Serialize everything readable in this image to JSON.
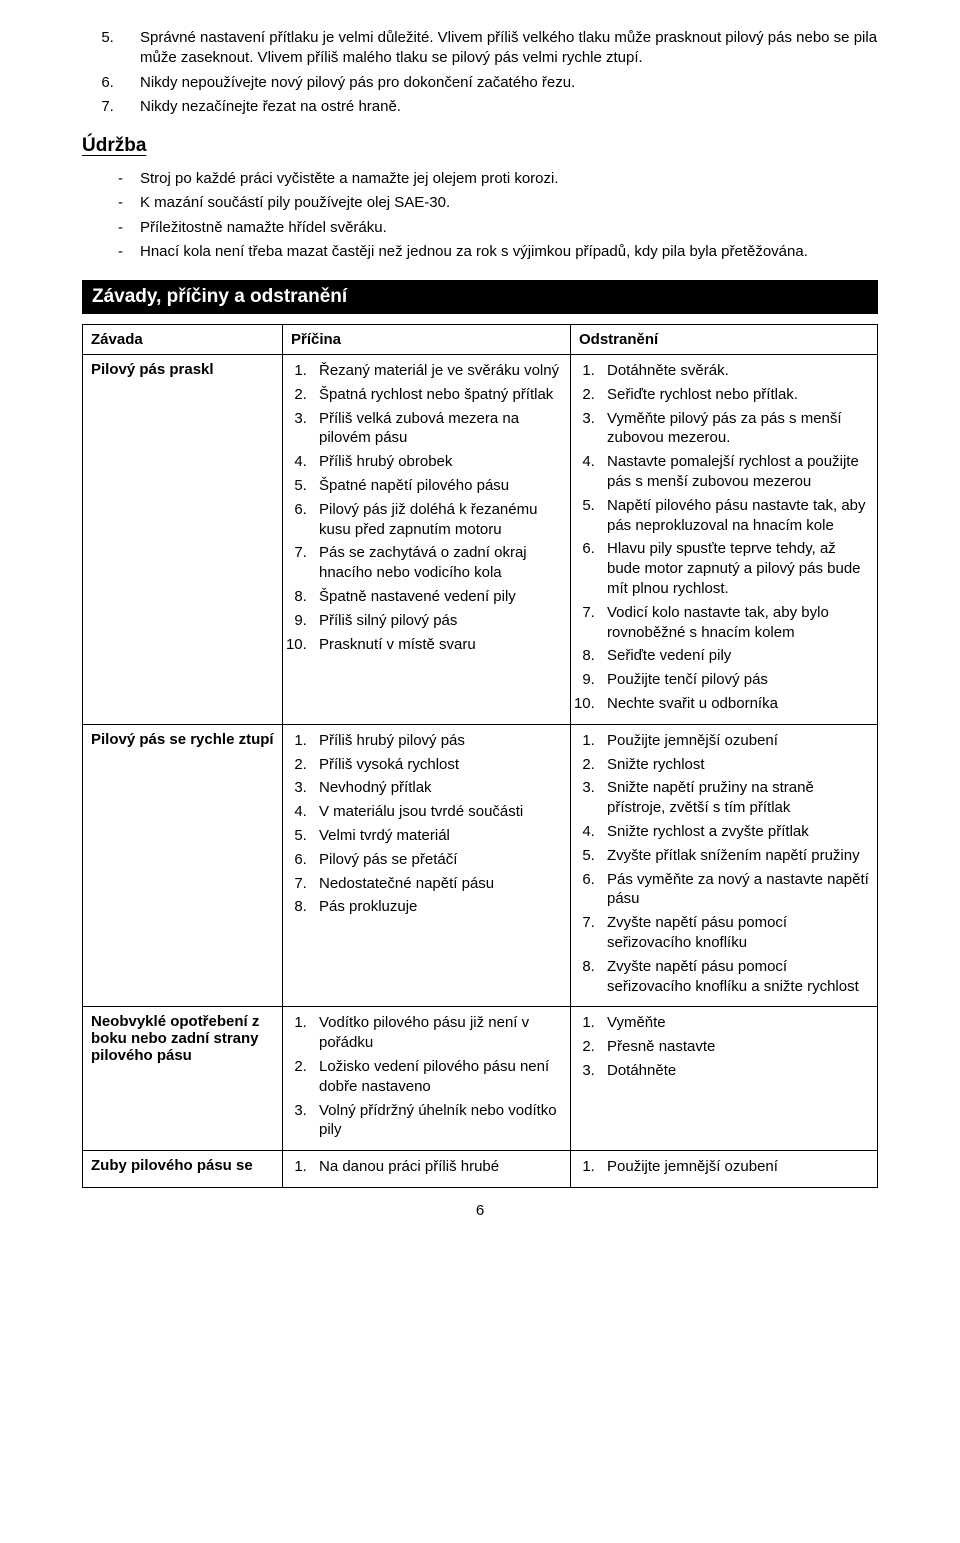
{
  "numbered": {
    "5": "Správné nastavení přítlaku je velmi důležité. Vlivem příliš velkého tlaku může prasknout pilový pás nebo se pila může zaseknout. Vlivem příliš malého tlaku se pilový pás velmi rychle ztupí.",
    "6": "Nikdy nepoužívejte nový pilový pás pro dokončení začatého řezu.",
    "7": "Nikdy nezačínejte řezat na ostré hraně."
  },
  "maintenance_title": "Údržba",
  "maintenance_items": {
    "0": "Stroj po každé práci vyčistěte a namažte jej olejem proti korozi.",
    "1": "K mazání součástí pily používejte olej SAE-30.",
    "2": "Příležitostně namažte hřídel svěráku.",
    "3": "Hnací kola není třeba mazat častěji než jednou za rok s výjimkou případů, kdy pila byla přetěžována."
  },
  "troubleshoot_title": "Závady, příčiny a odstranění",
  "table": {
    "headers": {
      "fault": "Závada",
      "cause": "Příčina",
      "fix": "Odstranění"
    },
    "rows": {
      "0": {
        "fault": "Pilový pás praskl",
        "cause": {
          "1": "Řezaný materiál je ve svěráku volný",
          "2": "Špatná rychlost nebo špatný přítlak",
          "3": "Příliš velká zubová mezera na pilovém pásu",
          "4": "Příliš hrubý obrobek",
          "5": "Špatné napětí pilového pásu",
          "6": "Pilový pás již doléhá k řezanému kusu před zapnutím motoru",
          "7": "Pás se zachytává o zadní okraj hnacího nebo vodicího kola",
          "8": "Špatně nastavené vedení pily",
          "9": "Příliš silný pilový pás",
          "10": "Prasknutí v místě svaru"
        },
        "fix": {
          "1": "Dotáhněte svěrák.",
          "2": "Seřiďte rychlost nebo přítlak.",
          "3": "Vyměňte pilový pás za pás s menší zubovou mezerou.",
          "4": "Nastavte pomalejší rychlost a použijte pás s menší zubovou mezerou",
          "5": "Napětí pilového pásu nastavte tak, aby pás neprokluzoval na hnacím kole",
          "6": "Hlavu pily spusťte teprve tehdy, až bude motor zapnutý a pilový pás bude mít plnou rychlost.",
          "7": "Vodicí kolo nastavte tak, aby bylo rovnoběžné s hnacím kolem",
          "8": "Seřiďte vedení pily",
          "9": "Použijte tenčí pilový pás",
          "10": "Nechte svařit u odborníka"
        }
      },
      "1": {
        "fault": "Pilový pás se rychle ztupí",
        "cause": {
          "1": "Příliš hrubý pilový pás",
          "2": "Příliš vysoká rychlost",
          "3": "Nevhodný přítlak",
          "4": "V materiálu jsou tvrdé součásti",
          "5": "Velmi tvrdý materiál",
          "6": "Pilový pás se přetáčí",
          "7": "Nedostatečné napětí pásu",
          "8": "Pás prokluzuje"
        },
        "fix": {
          "1": "Použijte jemnější ozubení",
          "2": "Snižte rychlost",
          "3": "Snižte napětí pružiny na straně přístroje, zvětší s tím přítlak",
          "4": "Snižte rychlost a zvyšte přítlak",
          "5": "Zvyšte přítlak snížením napětí pružiny",
          "6": "Pás vyměňte za nový a nastavte napětí pásu",
          "7": "Zvyšte napětí pásu pomocí seřizovacího knoflíku",
          "8": "Zvyšte napětí pásu pomocí seřizovacího knoflíku a snižte rychlost"
        }
      },
      "2": {
        "fault": "Neobvyklé opotřebení z boku nebo zadní strany pilového pásu",
        "cause": {
          "1": "Vodítko pilového pásu již není v pořádku",
          "2": "Ložisko vedení pilového pásu není dobře nastaveno",
          "3": "Volný přídržný úhelník nebo vodítko pily"
        },
        "fix": {
          "1": "Vyměňte",
          "2": "Přesně nastavte",
          "3": "Dotáhněte"
        }
      },
      "3": {
        "fault": "Zuby pilového pásu se",
        "cause": {
          "1": "Na danou práci příliš hrubé"
        },
        "fix": {
          "1": "Použijte jemnější ozubení"
        }
      }
    }
  },
  "page_number": "6"
}
